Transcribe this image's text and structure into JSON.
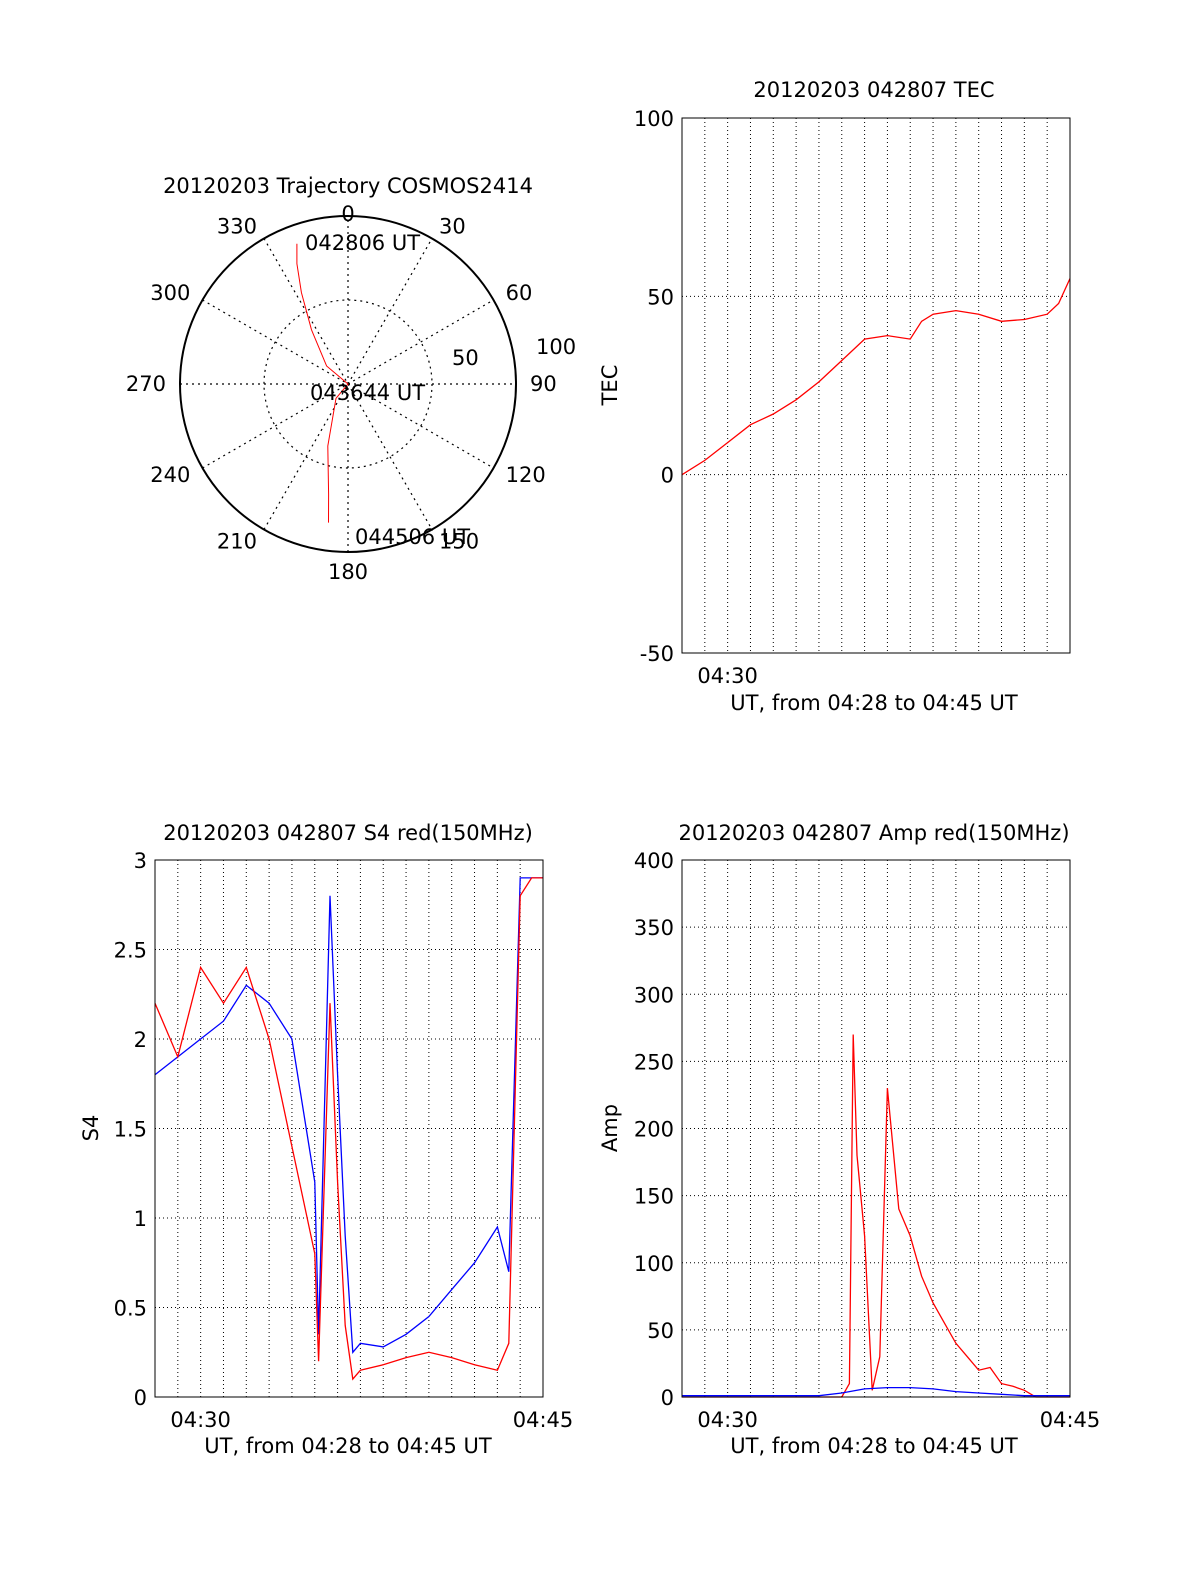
{
  "colors": {
    "red_series": "#ff0000",
    "blue_series": "#0000ff",
    "axis": "#000000",
    "grid": "#000000"
  },
  "chart_data": [
    {
      "type": "polar",
      "title": "20120203 Trajectory COSMOS2414",
      "azimuth_labels": [
        "0",
        "30",
        "60",
        "90",
        "120",
        "150",
        "180",
        "210",
        "240",
        "270",
        "300",
        "330"
      ],
      "elevation_labels": [
        "50",
        "100"
      ],
      "elevation_rings": [
        50,
        100
      ],
      "trajectory_annotations": [
        "042806 UT",
        "043644 UT",
        "044506 UT"
      ],
      "trajectory": [
        {
          "az": 340,
          "el": 10
        },
        {
          "az": 337,
          "el": 20
        },
        {
          "az": 333,
          "el": 35
        },
        {
          "az": 326,
          "el": 55
        },
        {
          "az": 310,
          "el": 75
        },
        {
          "az": 270,
          "el": 90
        },
        {
          "az": 220,
          "el": 80
        },
        {
          "az": 198,
          "el": 55
        },
        {
          "az": 190,
          "el": 30
        },
        {
          "az": 188,
          "el": 15
        }
      ]
    },
    {
      "type": "line",
      "title": "20120203 042807 TEC",
      "ylabel": "TEC",
      "xlabel": "UT, from 04:28 to 04:45 UT",
      "xlim": [
        "04:28",
        "04:45"
      ],
      "ylim": [
        -50,
        100
      ],
      "xtick_labels": [
        "04:30"
      ],
      "ytick_labels": [
        "-50",
        "0",
        "50",
        "100"
      ],
      "grid": true,
      "series": [
        {
          "x": [
            "04:28",
            "04:29",
            "04:30",
            "04:31",
            "04:32",
            "04:33",
            "04:34",
            "04:35",
            "04:36",
            "04:37",
            "04:38",
            "04:38:30",
            "04:39",
            "04:40",
            "04:41",
            "04:42",
            "04:43",
            "04:44",
            "04:44:30",
            "04:45"
          ],
          "values": [
            0,
            4,
            9,
            14,
            17,
            21,
            26,
            32,
            38,
            39,
            38,
            43,
            45,
            46,
            45,
            43,
            43.5,
            45,
            48,
            55
          ],
          "color": "red"
        }
      ]
    },
    {
      "type": "line",
      "title": "20120203 042807 S4 red(150MHz)",
      "ylabel": "S4",
      "xlabel": "UT, from 04:28 to 04:45 UT",
      "xlim": [
        "04:28",
        "04:45"
      ],
      "ylim": [
        0,
        3
      ],
      "xtick_labels": [
        "04:30",
        "04:45"
      ],
      "ytick_labels": [
        "0",
        "0.5",
        "1",
        "1.5",
        "2",
        "2.5",
        "3"
      ],
      "grid": true,
      "series": [
        {
          "color": "blue",
          "x": [
            "04:28",
            "04:29",
            "04:30",
            "04:31",
            "04:32",
            "04:33",
            "04:34",
            "04:35",
            "04:35:10",
            "04:35:40",
            "04:36",
            "04:36:20",
            "04:36:40",
            "04:37",
            "04:38",
            "04:39",
            "04:40",
            "04:41",
            "04:42",
            "04:43",
            "04:43:30",
            "04:44",
            "04:44:30",
            "04:45"
          ],
          "values": [
            1.8,
            1.9,
            2.0,
            2.1,
            2.3,
            2.2,
            2.0,
            1.2,
            0.35,
            2.8,
            1.8,
            0.9,
            0.25,
            0.3,
            0.28,
            0.35,
            0.45,
            0.6,
            0.75,
            0.95,
            0.7,
            2.9,
            2.9,
            2.9
          ]
        },
        {
          "color": "red",
          "x": [
            "04:28",
            "04:29",
            "04:30",
            "04:31",
            "04:32",
            "04:33",
            "04:34",
            "04:35",
            "04:35:10",
            "04:35:40",
            "04:36",
            "04:36:20",
            "04:36:40",
            "04:37",
            "04:38",
            "04:39",
            "04:40",
            "04:41",
            "04:42",
            "04:43",
            "04:43:30",
            "04:44",
            "04:44:30",
            "04:45"
          ],
          "values": [
            2.2,
            1.9,
            2.4,
            2.2,
            2.4,
            2.0,
            1.4,
            0.8,
            0.2,
            2.2,
            1.2,
            0.4,
            0.1,
            0.15,
            0.18,
            0.22,
            0.25,
            0.22,
            0.18,
            0.15,
            0.3,
            2.8,
            2.9,
            2.9
          ]
        }
      ]
    },
    {
      "type": "line",
      "title": "20120203 042807 Amp red(150MHz)",
      "ylabel": "Amp",
      "xlabel": "UT, from 04:28 to 04:45 UT",
      "xlim": [
        "04:28",
        "04:45"
      ],
      "ylim": [
        0,
        400
      ],
      "xtick_labels": [
        "04:30",
        "04:45"
      ],
      "ytick_labels": [
        "0",
        "50",
        "100",
        "150",
        "200",
        "250",
        "300",
        "350",
        "400"
      ],
      "grid": true,
      "series": [
        {
          "color": "red",
          "x": [
            "04:28",
            "04:35",
            "04:35:20",
            "04:35:30",
            "04:35:40",
            "04:36",
            "04:36:20",
            "04:36:40",
            "04:37",
            "04:37:30",
            "04:38",
            "04:38:30",
            "04:39",
            "04:39:30",
            "04:40",
            "04:40:30",
            "04:41",
            "04:41:30",
            "04:42",
            "04:42:30",
            "04:43",
            "04:43:30",
            "04:44",
            "04:45"
          ],
          "values": [
            0,
            0,
            10,
            270,
            180,
            120,
            5,
            30,
            230,
            140,
            120,
            90,
            70,
            55,
            40,
            30,
            20,
            22,
            10,
            8,
            5,
            0,
            0,
            0
          ]
        },
        {
          "color": "blue",
          "x": [
            "04:28",
            "04:34",
            "04:35",
            "04:36",
            "04:37",
            "04:38",
            "04:39",
            "04:40",
            "04:41",
            "04:42",
            "04:43",
            "04:44",
            "04:45"
          ],
          "values": [
            1,
            1,
            3,
            6,
            7,
            7,
            6,
            4,
            3,
            2,
            1,
            1,
            1
          ]
        }
      ]
    }
  ]
}
